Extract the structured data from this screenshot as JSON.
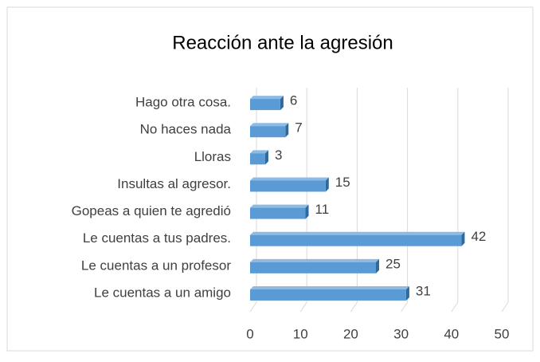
{
  "chart_data": {
    "type": "bar",
    "orientation": "horizontal",
    "title": "Reacción ante la agresión",
    "categories": [
      "Hago otra cosa.",
      "No haces nada",
      "Lloras",
      "Insultas al agresor.",
      "Gopeas a quien te agredió",
      "Le cuentas a tus padres.",
      "Le cuentas a un profesor",
      "Le cuentas a un amigo"
    ],
    "values": [
      6,
      7,
      3,
      15,
      11,
      42,
      25,
      31
    ],
    "color": "#5b9bd5",
    "xlim": [
      0,
      50
    ],
    "xticks": [
      0,
      10,
      20,
      30,
      40,
      50
    ],
    "grid": true
  }
}
